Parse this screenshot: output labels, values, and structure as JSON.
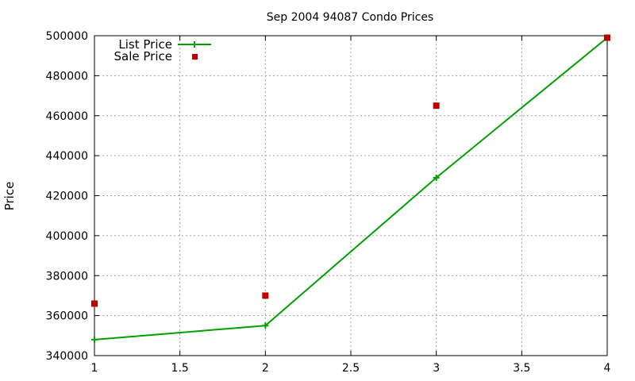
{
  "chart_data": {
    "type": "line",
    "title": "Sep 2004 94087 Condo Prices",
    "xlabel": "",
    "ylabel": "Price",
    "xlim": [
      1,
      4
    ],
    "ylim": [
      340000,
      500000
    ],
    "xticks": [
      "1",
      "1.5",
      "2",
      "2.5",
      "3",
      "3.5",
      "4"
    ],
    "yticks": [
      "340000",
      "360000",
      "380000",
      "400000",
      "420000",
      "440000",
      "460000",
      "480000",
      "500000"
    ],
    "grid": true,
    "legend_position": "top-left",
    "series": [
      {
        "name": "List Price",
        "style": "linespoints",
        "marker": "plus",
        "color": "#00a000",
        "x": [
          1,
          2,
          3,
          4
        ],
        "y": [
          348000,
          355000,
          429000,
          499000
        ]
      },
      {
        "name": "Sale Price",
        "style": "points",
        "marker": "square",
        "color": "#c00000",
        "x": [
          1,
          2,
          3,
          4
        ],
        "y": [
          366000,
          370000,
          465000,
          499000
        ]
      }
    ]
  }
}
